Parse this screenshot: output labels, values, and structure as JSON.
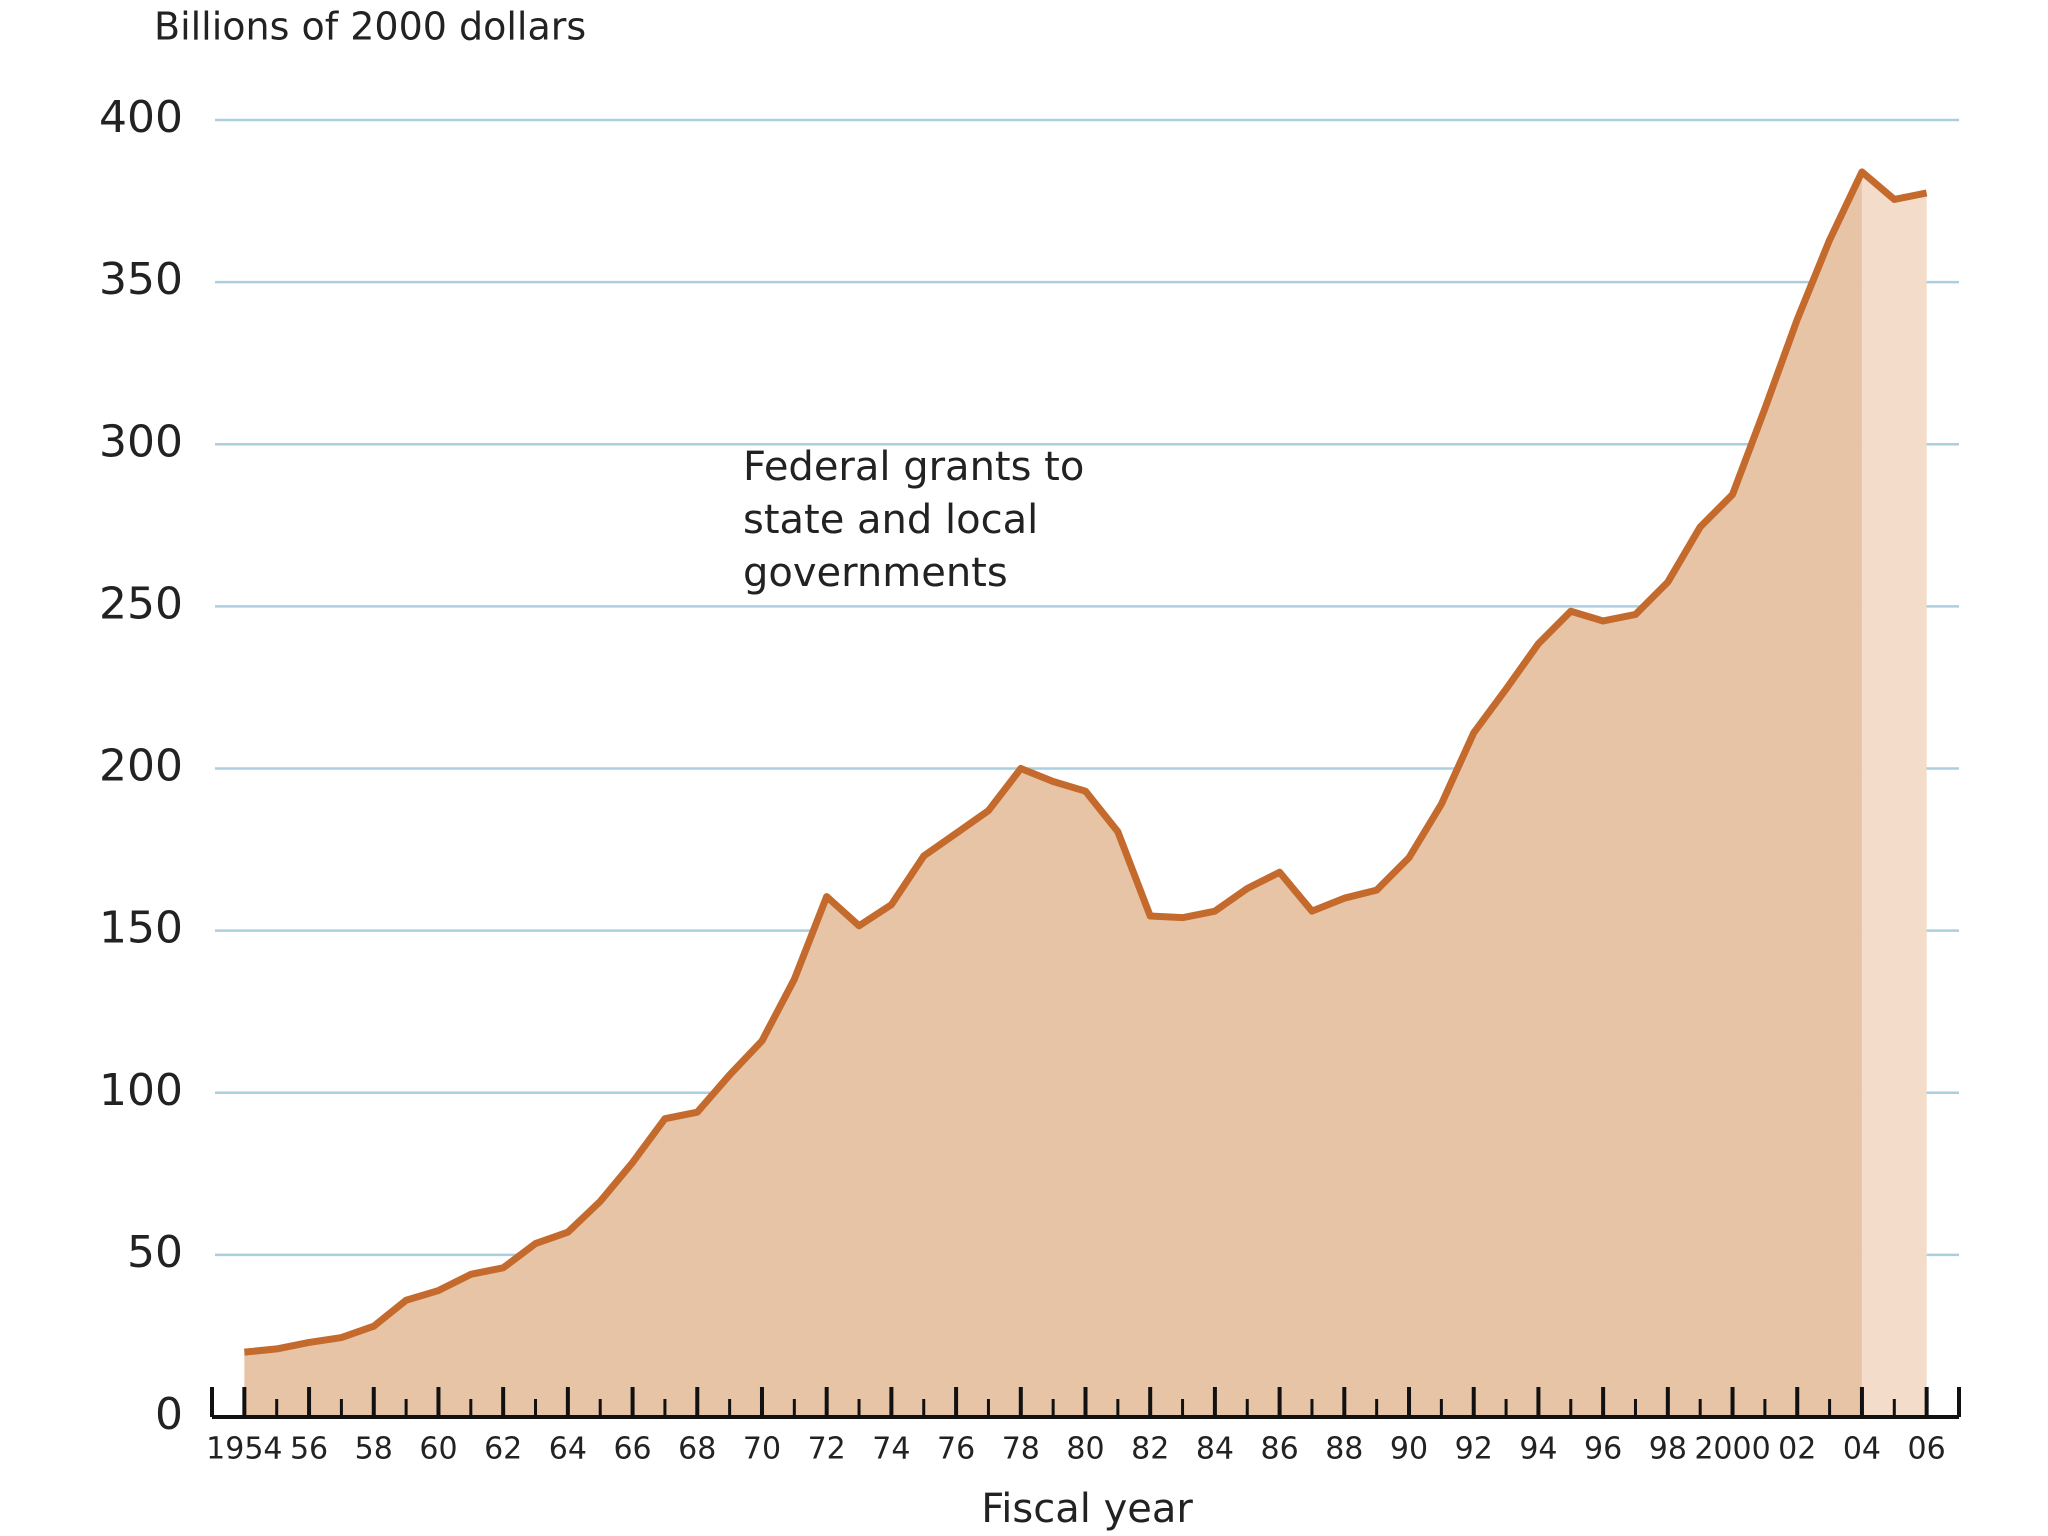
{
  "chart_data": {
    "type": "area",
    "ylabel": "Billions of 2000 dollars",
    "xlabel": "Fiscal year",
    "annotation": [
      "Federal grants to",
      "state and local",
      "governments"
    ],
    "x": [
      1954,
      1955,
      1956,
      1957,
      1958,
      1959,
      1960,
      1961,
      1962,
      1963,
      1964,
      1965,
      1966,
      1967,
      1968,
      1969,
      1970,
      1971,
      1972,
      1973,
      1974,
      1975,
      1976,
      1977,
      1978,
      1979,
      1980,
      1981,
      1982,
      1983,
      1984,
      1985,
      1986,
      1987,
      1988,
      1989,
      1990,
      1991,
      1992,
      1993,
      1994,
      1995,
      1996,
      1997,
      1998,
      1999,
      2000,
      2001,
      2002,
      2003,
      2004,
      2005,
      2006
    ],
    "series": [
      {
        "name": "Federal grants to state and local governments",
        "color": "#c46a2c",
        "fill": "#e8c4a6",
        "estimate_fill": "#f3dcc9",
        "values": [
          20,
          21,
          23,
          24.5,
          28,
          36,
          39,
          44,
          46,
          53.5,
          57,
          66.5,
          78.5,
          92,
          94,
          105.5,
          116,
          135,
          160.5,
          151.5,
          158,
          173,
          180,
          187,
          200,
          196,
          193,
          180.5,
          154.5,
          154,
          156,
          163,
          168,
          156,
          160,
          162.5,
          172.5,
          189,
          211,
          224.5,
          238.5,
          248.5,
          245.5,
          247.5,
          257.5,
          274.5,
          284.5,
          311,
          338.5,
          363,
          384,
          375.5,
          377.5
        ]
      }
    ],
    "estimate_from": 2004,
    "xlim": [
      1953,
      2007
    ],
    "xticks": [
      {
        "value": 1954,
        "label": "1954"
      },
      {
        "value": 1956,
        "label": "56"
      },
      {
        "value": 1958,
        "label": "58"
      },
      {
        "value": 1960,
        "label": "60"
      },
      {
        "value": 1962,
        "label": "62"
      },
      {
        "value": 1964,
        "label": "64"
      },
      {
        "value": 1966,
        "label": "66"
      },
      {
        "value": 1968,
        "label": "68"
      },
      {
        "value": 1970,
        "label": "70"
      },
      {
        "value": 1972,
        "label": "72"
      },
      {
        "value": 1974,
        "label": "74"
      },
      {
        "value": 1976,
        "label": "76"
      },
      {
        "value": 1978,
        "label": "78"
      },
      {
        "value": 1980,
        "label": "80"
      },
      {
        "value": 1982,
        "label": "82"
      },
      {
        "value": 1984,
        "label": "84"
      },
      {
        "value": 1986,
        "label": "86"
      },
      {
        "value": 1988,
        "label": "88"
      },
      {
        "value": 1990,
        "label": "90"
      },
      {
        "value": 1992,
        "label": "92"
      },
      {
        "value": 1994,
        "label": "94"
      },
      {
        "value": 1996,
        "label": "96"
      },
      {
        "value": 1998,
        "label": "98"
      },
      {
        "value": 2000,
        "label": "2000"
      },
      {
        "value": 2002,
        "label": "02"
      },
      {
        "value": 2004,
        "label": "04"
      },
      {
        "value": 2006,
        "label": "06"
      }
    ],
    "ylim": [
      0,
      400
    ],
    "yticks": [
      0,
      50,
      100,
      150,
      200,
      250,
      300,
      350,
      400
    ],
    "grid": true,
    "grid_color": "#a9cfe0"
  }
}
